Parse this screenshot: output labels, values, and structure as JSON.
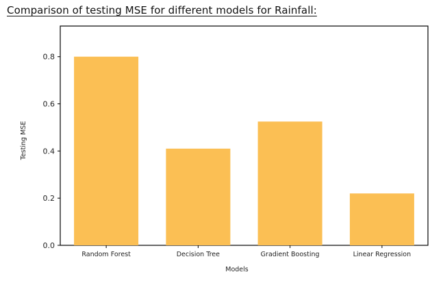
{
  "heading": "Comparison of testing MSE for different models for Rainfall:",
  "chart_data": {
    "type": "bar",
    "categories": [
      "Random Forest",
      "Decision Tree",
      "Gradient Boosting",
      "Linear Regression"
    ],
    "values": [
      0.8,
      0.41,
      0.525,
      0.22
    ],
    "title": "",
    "xlabel": "Models",
    "ylabel": "Testing MSE",
    "ylim": [
      0.0,
      0.93
    ],
    "yticks": [
      0.0,
      0.2,
      0.4,
      0.6,
      0.8
    ],
    "ytick_labels": [
      "0.0",
      "0.2",
      "0.4",
      "0.6",
      "0.8"
    ],
    "bar_color": "#fbbf54",
    "grid": false,
    "legend": "none"
  }
}
